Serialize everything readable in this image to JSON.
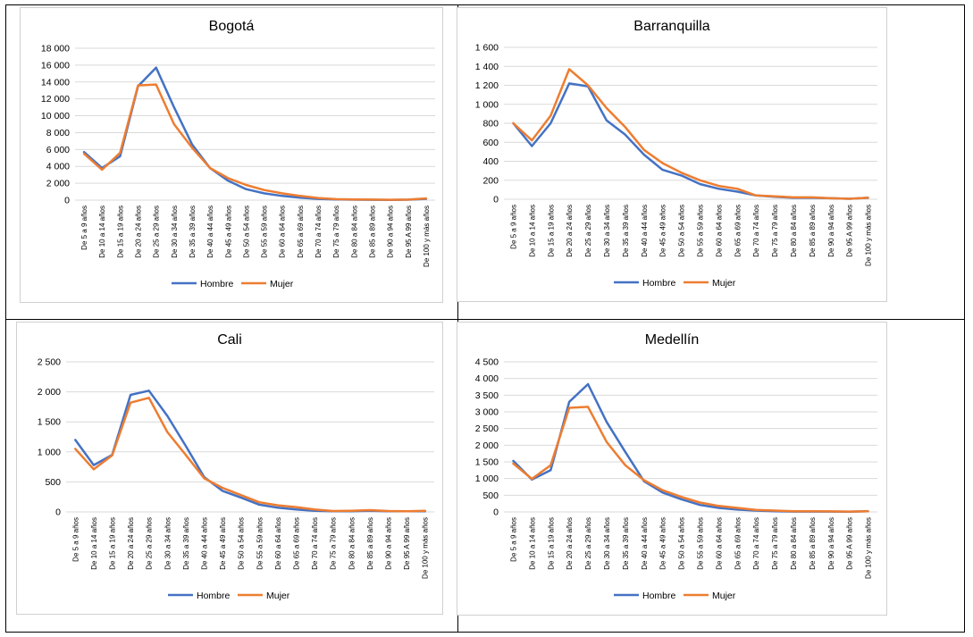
{
  "colors": {
    "hombre": "#4472C4",
    "mujer": "#ED7D31",
    "grid": "#D9D9D9",
    "frame": "#D0D0D0"
  },
  "chart_data": [
    {
      "type": "line",
      "title": "Bogotá",
      "categories": [
        "De 5 a 9 años",
        "De 10 a 14 años",
        "De 15 a 19 años",
        "De 20 a 24 años",
        "De 25 a 29 años",
        "De 30 a 34 años",
        "De 35 a 39 años",
        "De 40 a 44 años",
        "De 45 a 49 años",
        "De 50 a 54 años",
        "De 55 a 59 años",
        "De 60 a 64 años",
        "De 65 a 69 años",
        "De 70 a 74 años",
        "De 75 a 79 años",
        "De 80 a 84 años",
        "De 85 a 89 años",
        "De 90 a 94 años",
        "De 95 A 99 años",
        "De 100 y más años"
      ],
      "ylim": [
        0,
        18000
      ],
      "yticks": [
        0,
        2000,
        4000,
        6000,
        8000,
        10000,
        12000,
        14000,
        16000,
        18000
      ],
      "ytick_labels": [
        "0",
        "2 000",
        "4 000",
        "6 000",
        "8 000",
        "10 000",
        "12 000",
        "14 000",
        "16 000",
        "18 000"
      ],
      "series": [
        {
          "name": "Hombre",
          "values": [
            5700,
            3800,
            5200,
            13500,
            15700,
            11000,
            6600,
            3800,
            2300,
            1300,
            800,
            500,
            300,
            150,
            80,
            50,
            40,
            30,
            50,
            150
          ]
        },
        {
          "name": "Mujer",
          "values": [
            5500,
            3600,
            5600,
            13600,
            13700,
            9000,
            6200,
            3800,
            2600,
            1800,
            1200,
            800,
            500,
            250,
            120,
            80,
            60,
            40,
            60,
            200
          ]
        }
      ],
      "legend": [
        "Hombre",
        "Mujer"
      ],
      "legend_position": "bottom"
    },
    {
      "type": "line",
      "title": "Barranquilla",
      "categories": [
        "De 5 a 9 años",
        "De 10 a 14 años",
        "De 15 a 19 años",
        "De 20 a 24 años",
        "De 25 a 29 años",
        "De 30 a 34 años",
        "De 35 a 39 años",
        "De 40 a 44 años",
        "De 45 a 49 años",
        "De 50 a 54 años",
        "De 55 a 59 años",
        "De 60 a 64 años",
        "De 65 a 69 años",
        "De 70 a 74 años",
        "De 75 a 79 años",
        "De 80 a 84 años",
        "De 85 a 89 años",
        "De 90 a 94 años",
        "De 95 A 99 años",
        "De 100 y más años"
      ],
      "ylim": [
        0,
        1600
      ],
      "yticks": [
        0,
        200,
        400,
        600,
        800,
        1000,
        1200,
        1400,
        1600
      ],
      "ytick_labels": [
        "0",
        "200",
        "400",
        "600",
        "800",
        "1 000",
        "1 200",
        "1 400",
        "1 600"
      ],
      "series": [
        {
          "name": "Hombre",
          "values": [
            800,
            560,
            800,
            1220,
            1190,
            830,
            680,
            470,
            310,
            250,
            160,
            110,
            80,
            40,
            25,
            15,
            15,
            10,
            5,
            15
          ]
        },
        {
          "name": "Mujer",
          "values": [
            800,
            620,
            880,
            1370,
            1200,
            960,
            760,
            520,
            380,
            280,
            200,
            140,
            110,
            40,
            30,
            20,
            20,
            10,
            5,
            15
          ]
        }
      ],
      "legend": [
        "Hombre",
        "Mujer"
      ],
      "legend_position": "bottom"
    },
    {
      "type": "line",
      "title": "Cali",
      "categories": [
        "De 5 a 9 años",
        "De 10 a 14 años",
        "De 15 a 19 años",
        "De 20 a 24 años",
        "De 25 a 29 años",
        "De 30 a 34 años",
        "De 35 a 39 años",
        "De 40 a 44 años",
        "De 45 a 49 años",
        "De 50 a 54 años",
        "De 55 a 59 años",
        "De 60 a 64 años",
        "De 65 a 69 años",
        "De 70 a 74 años",
        "De 75 a 79 años",
        "De 80 a 84 años",
        "De 85 a 89 años",
        "De 90 a 94 años",
        "De 95 A 99 años",
        "De 100 y más años"
      ],
      "ylim": [
        0,
        2500
      ],
      "yticks": [
        0,
        500,
        1000,
        1500,
        2000,
        2500
      ],
      "ytick_labels": [
        "0",
        "500",
        "1 000",
        "1 500",
        "2 000",
        "2 500"
      ],
      "series": [
        {
          "name": "Hombre",
          "values": [
            1200,
            780,
            950,
            1950,
            2020,
            1600,
            1100,
            580,
            350,
            240,
            120,
            70,
            40,
            20,
            10,
            10,
            20,
            10,
            10,
            10
          ]
        },
        {
          "name": "Mujer",
          "values": [
            1050,
            710,
            940,
            1820,
            1900,
            1330,
            950,
            560,
            400,
            280,
            160,
            110,
            80,
            40,
            15,
            20,
            30,
            15,
            10,
            20
          ]
        }
      ],
      "legend": [
        "Hombre",
        "Mujer"
      ],
      "legend_position": "bottom"
    },
    {
      "type": "line",
      "title": "Medellín",
      "categories": [
        "De 5 a 9 años",
        "De 10 a 14 años",
        "De 15 a 19 años",
        "De 20 a 24 años",
        "De 25 a 29 años",
        "De 30 a 34 años",
        "De 35 a 39 años",
        "De 40 a 44 años",
        "De 45 a 49 años",
        "De 50 a 54 años",
        "De 55 a 59 años",
        "De 60 a 64 años",
        "De 65 a 69 años",
        "De 70 a 74 años",
        "De 75 a 79 años",
        "De 80 a 84 años",
        "De 85 a 89 años",
        "De 90 a 94 años",
        "De 95 A 99 años",
        "De 100 y más años"
      ],
      "ylim": [
        0,
        4500
      ],
      "yticks": [
        0,
        500,
        1000,
        1500,
        2000,
        2500,
        3000,
        3500,
        4000,
        4500
      ],
      "ytick_labels": [
        "0",
        "500",
        "1 000",
        "1 500",
        "2 000",
        "2 500",
        "3 000",
        "3 500",
        "4 000",
        "4 500"
      ],
      "series": [
        {
          "name": "Hombre",
          "values": [
            1530,
            970,
            1250,
            3300,
            3830,
            2700,
            1800,
            920,
            580,
            380,
            210,
            120,
            70,
            40,
            20,
            10,
            10,
            10,
            5,
            20
          ]
        },
        {
          "name": "Mujer",
          "values": [
            1450,
            990,
            1400,
            3120,
            3150,
            2100,
            1400,
            950,
            650,
            450,
            280,
            180,
            120,
            60,
            40,
            20,
            20,
            15,
            10,
            20
          ]
        }
      ],
      "legend": [
        "Hombre",
        "Mujer"
      ],
      "legend_position": "bottom"
    }
  ]
}
